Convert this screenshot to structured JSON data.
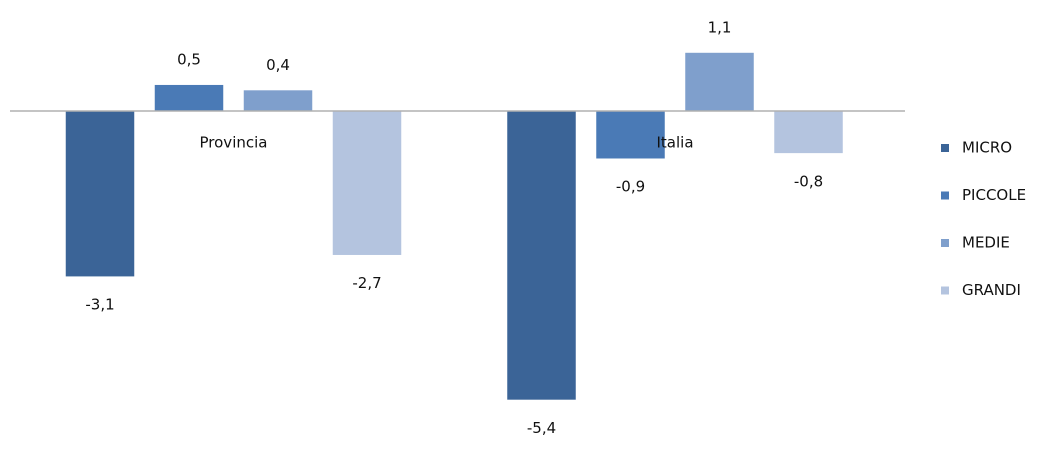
{
  "chart_data": {
    "type": "bar",
    "categories": [
      "Provincia",
      "Italia"
    ],
    "series": [
      {
        "name": "MICRO",
        "color": "#3b6497",
        "values": [
          -3.1,
          -5.4
        ],
        "value_labels": [
          "-3,1",
          "-5,4"
        ]
      },
      {
        "name": "PICCOLE",
        "color": "#4a7ab6",
        "values": [
          0.5,
          -0.9
        ],
        "value_labels": [
          "0,5",
          "-0,9"
        ]
      },
      {
        "name": "MEDIE",
        "color": "#7f9fcc",
        "values": [
          0.4,
          1.1
        ],
        "value_labels": [
          "0,4",
          "1,1"
        ]
      },
      {
        "name": "GRANDI",
        "color": "#b4c4df",
        "values": [
          -2.7,
          -0.8
        ],
        "value_labels": [
          "-2,7",
          "-0,8"
        ]
      }
    ],
    "legend": "right"
  }
}
